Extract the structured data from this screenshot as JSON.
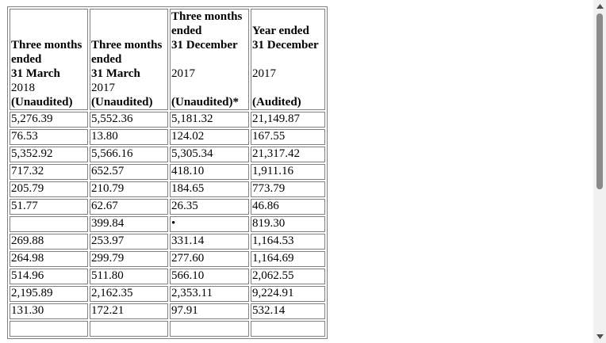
{
  "table": {
    "headers": [
      {
        "bold_lines": [
          "Three months",
          "ended",
          "31 March"
        ],
        "year": "2018",
        "status": "(Unaudited)"
      },
      {
        "bold_lines": [
          "Three months",
          "ended",
          "31 March"
        ],
        "year": "2017",
        "status": "(Unaudited)"
      },
      {
        "bold_lines": [
          "Three months",
          "ended",
          "31 December"
        ],
        "year": "2017",
        "status": "(Unaudited)*"
      },
      {
        "bold_lines": [
          "Year ended",
          "31 December"
        ],
        "year": "2017",
        "status": "(Audited)"
      }
    ],
    "rows": [
      [
        "5,276.39",
        "5,552.36",
        "5,181.32",
        "21,149.87"
      ],
      [
        "76.53",
        "13.80",
        "124.02",
        "167.55"
      ],
      [
        "5,352.92",
        "5,566.16",
        "5,305.34",
        "21,317.42"
      ],
      [
        "717.32",
        "652.57",
        "418.10",
        "1,911.16"
      ],
      [
        "205.79",
        "210.79",
        "184.65",
        "773.79"
      ],
      [
        "51.77",
        "62.67",
        "26.35",
        "46.86"
      ],
      [
        "",
        "399.84",
        "•",
        "819.30"
      ],
      [
        "269.88",
        "253.97",
        "331.14",
        "1,164.53"
      ],
      [
        "264.98",
        "299.79",
        "277.60",
        "1,164.69"
      ],
      [
        "514.96",
        "511.80",
        "566.10",
        "2,062.55"
      ],
      [
        "2,195.89",
        "2,162.35",
        "2,353.11",
        "9,224.91"
      ],
      [
        "131.30",
        "172.21",
        "97.91",
        "532.14"
      ],
      [
        "",
        "",
        "",
        ""
      ]
    ]
  },
  "scrollbar": {
    "up_icon": "triangle-up-icon",
    "down_icon": "triangle-down-icon"
  }
}
